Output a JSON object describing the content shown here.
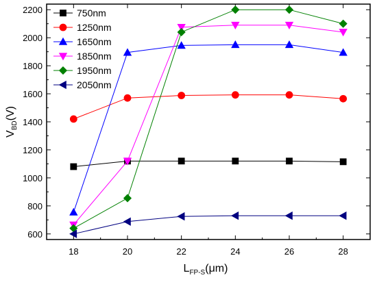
{
  "chart_data": {
    "type": "line",
    "x": [
      18,
      20,
      22,
      24,
      26,
      28
    ],
    "xlim": [
      17,
      29
    ],
    "ylim": [
      560,
      2240
    ],
    "xticks": [
      18,
      20,
      22,
      24,
      26,
      28
    ],
    "yticks": [
      600,
      800,
      1000,
      1200,
      1400,
      1600,
      1800,
      2000,
      2200
    ],
    "xlabel": {
      "main": "L",
      "sub": "FP-S",
      "unit": "(μm)"
    },
    "ylabel": {
      "main": "V",
      "sub": "BD",
      "unit": "(V)"
    },
    "grid": false,
    "legend_position": "top-left",
    "series": [
      {
        "name": "750nm",
        "color": "#000000",
        "marker": "square",
        "values": [
          1080,
          1120,
          1120,
          1120,
          1120,
          1115
        ]
      },
      {
        "name": "1250nm",
        "color": "#ff0000",
        "marker": "circle",
        "values": [
          1420,
          1570,
          1588,
          1592,
          1592,
          1565
        ]
      },
      {
        "name": "1650nm",
        "color": "#0000ff",
        "marker": "triangle-up",
        "values": [
          755,
          1895,
          1945,
          1950,
          1950,
          1895
        ]
      },
      {
        "name": "1850nm",
        "color": "#ff00ff",
        "marker": "triangle-down",
        "values": [
          665,
          1120,
          2075,
          2090,
          2090,
          2040
        ]
      },
      {
        "name": "1950nm",
        "color": "#008000",
        "marker": "diamond",
        "values": [
          640,
          855,
          2040,
          2200,
          2200,
          2100
        ]
      },
      {
        "name": "2050nm",
        "color": "#000080",
        "marker": "triangle-left",
        "values": [
          600,
          688,
          725,
          730,
          730,
          730
        ]
      }
    ]
  }
}
